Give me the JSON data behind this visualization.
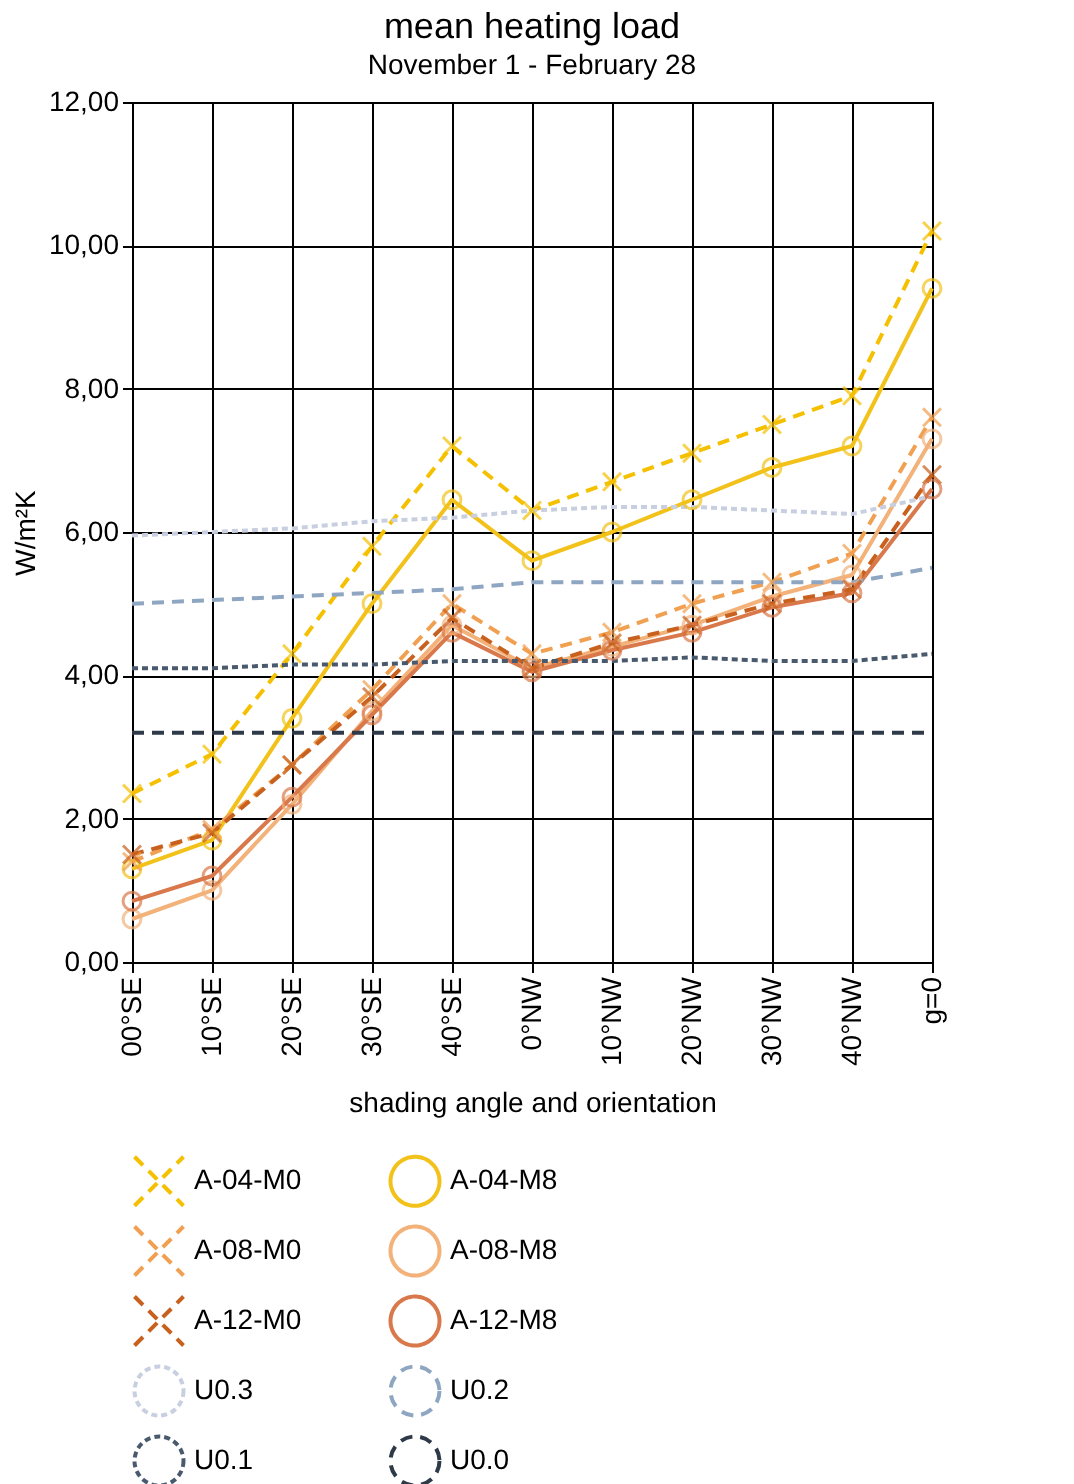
{
  "chart_data": {
    "type": "line",
    "title": "mean heating load",
    "subtitle": "November 1 - February 28",
    "xlabel": "shading angle and orientation",
    "ylabel": "W/m²K",
    "categories": [
      "00°SE",
      "10°SE",
      "20°SE",
      "30°SE",
      "40°SE",
      "0°NW",
      "10°NW",
      "20°NW",
      "30°NW",
      "40°NW",
      "g=0"
    ],
    "ylim": [
      0,
      12
    ],
    "yticks": [
      {
        "value": 0,
        "label": "0,00"
      },
      {
        "value": 2,
        "label": "2,00"
      },
      {
        "value": 4,
        "label": "4,00"
      },
      {
        "value": 6,
        "label": "6,00"
      },
      {
        "value": 8,
        "label": "8,00"
      },
      {
        "value": 10,
        "label": "10,00"
      },
      {
        "value": 12,
        "label": "12,00"
      }
    ],
    "grid": true,
    "legend": "bottom",
    "series": [
      {
        "name": "A-04-M0",
        "color": "#f5c000",
        "line_style": "dashed",
        "marker": "cross",
        "values": [
          2.35,
          2.9,
          4.3,
          5.8,
          7.2,
          6.3,
          6.7,
          7.1,
          7.5,
          7.9,
          10.2
        ]
      },
      {
        "name": "A-04-M8",
        "color": "#f2c21a",
        "line_style": "solid",
        "marker": "circle",
        "values": [
          1.3,
          1.7,
          3.4,
          5.0,
          6.45,
          5.6,
          6.0,
          6.45,
          6.9,
          7.2,
          9.4
        ]
      },
      {
        "name": "A-08-M0",
        "color": "#f0a050",
        "line_style": "dashed",
        "marker": "cross",
        "values": [
          1.4,
          1.85,
          2.75,
          3.8,
          5.0,
          4.3,
          4.6,
          5.0,
          5.3,
          5.7,
          7.6
        ]
      },
      {
        "name": "A-08-M8",
        "color": "#f2b27a",
        "line_style": "solid",
        "marker": "circle",
        "values": [
          0.6,
          1.0,
          2.2,
          3.5,
          4.7,
          4.1,
          4.4,
          4.7,
          5.1,
          5.4,
          7.3
        ]
      },
      {
        "name": "A-12-M0",
        "color": "#c8601e",
        "line_style": "dashed",
        "marker": "cross",
        "values": [
          1.5,
          1.8,
          2.75,
          3.7,
          4.8,
          4.1,
          4.45,
          4.7,
          5.0,
          5.2,
          6.8
        ]
      },
      {
        "name": "A-12-M8",
        "color": "#d9784a",
        "line_style": "solid",
        "marker": "circle",
        "values": [
          0.85,
          1.2,
          2.3,
          3.45,
          4.6,
          4.05,
          4.35,
          4.6,
          4.95,
          5.15,
          6.6
        ]
      },
      {
        "name": "U0.3",
        "color": "#c8cfe0",
        "line_style": "dotted",
        "marker": "none",
        "values": [
          5.95,
          6.0,
          6.05,
          6.15,
          6.2,
          6.3,
          6.35,
          6.35,
          6.3,
          6.25,
          6.5
        ]
      },
      {
        "name": "U0.2",
        "color": "#8ea6c2",
        "line_style": "dashed",
        "marker": "none",
        "values": [
          5.0,
          5.05,
          5.1,
          5.15,
          5.2,
          5.3,
          5.3,
          5.3,
          5.3,
          5.3,
          5.5
        ]
      },
      {
        "name": "U0.1",
        "color": "#4a5a6e",
        "line_style": "dotted",
        "marker": "none",
        "values": [
          4.1,
          4.1,
          4.15,
          4.15,
          4.2,
          4.2,
          4.2,
          4.25,
          4.2,
          4.2,
          4.3
        ]
      },
      {
        "name": "U0.0",
        "color": "#2e3a48",
        "line_style": "dashed",
        "marker": "none",
        "values": [
          3.2,
          3.2,
          3.2,
          3.2,
          3.2,
          3.2,
          3.2,
          3.2,
          3.2,
          3.2,
          3.2
        ]
      }
    ]
  }
}
